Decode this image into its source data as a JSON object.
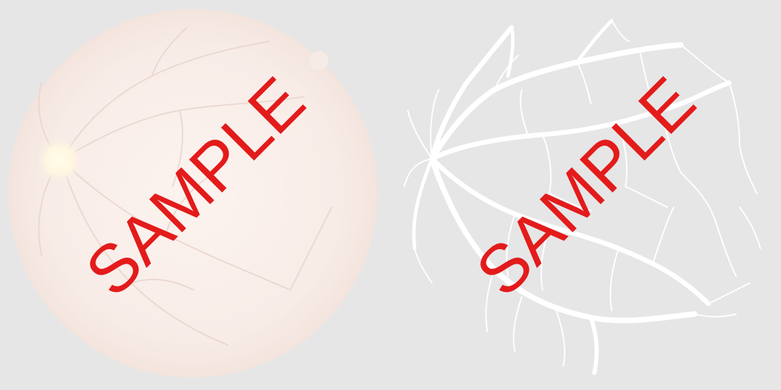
{
  "left_panel": {
    "watermark": "SAMPLE",
    "image_kind": "retinal-fundus-photograph"
  },
  "right_panel": {
    "watermark": "SAMPLE",
    "image_kind": "retinal-vessel-segmentation-mask"
  },
  "colors": {
    "background": "#e6e6e6",
    "fundus_fill": "#f7ece7",
    "optic_disc": "#fffbe6",
    "vessel_mask": "#ffffff",
    "watermark": "#e31b1b"
  }
}
